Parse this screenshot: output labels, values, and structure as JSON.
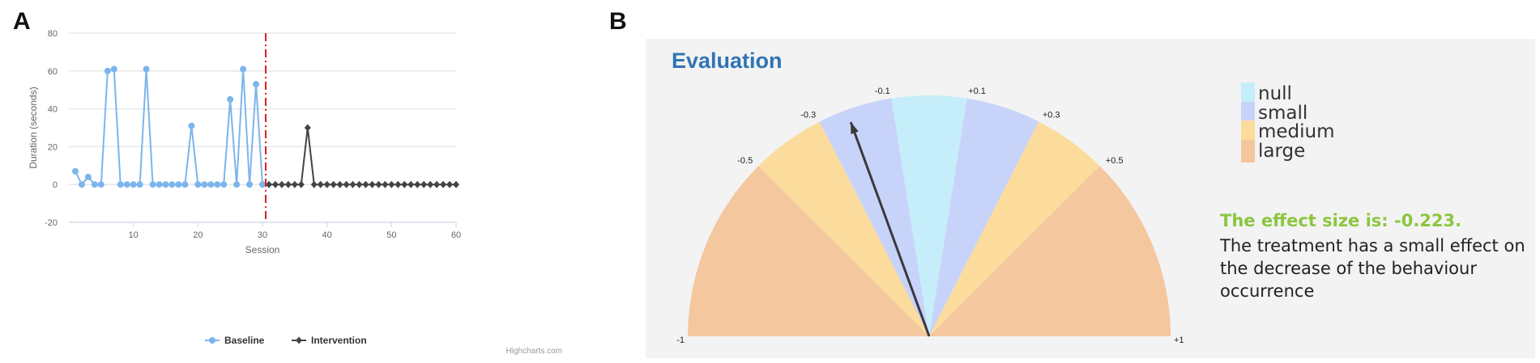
{
  "panels": {
    "a_letter": "A",
    "b_letter": "B"
  },
  "chart_data": [
    {
      "type": "line",
      "title": "",
      "xlabel": "Session",
      "ylabel": "Duration (seconds)",
      "xlim": [
        0,
        60
      ],
      "ylim": [
        -20,
        80
      ],
      "x_ticks": [
        10,
        20,
        30,
        40,
        50,
        60
      ],
      "y_ticks": [
        -20,
        0,
        20,
        40,
        60,
        80
      ],
      "grid": true,
      "legend_position": "bottom-center",
      "phase_change_at": 30.5,
      "credit": "Highcharts.com",
      "series": [
        {
          "name": "Baseline",
          "color": "#7cb5ec",
          "marker": "circle",
          "x": [
            1,
            2,
            3,
            4,
            5,
            6,
            7,
            8,
            9,
            10,
            11,
            12,
            13,
            14,
            15,
            16,
            17,
            18,
            19,
            20,
            21,
            22,
            23,
            24,
            25,
            26,
            27,
            28,
            29,
            30
          ],
          "y": [
            7,
            0,
            4,
            0,
            0,
            60,
            61,
            0,
            0,
            0,
            0,
            61,
            0,
            0,
            0,
            0,
            0,
            0,
            31,
            0,
            0,
            0,
            0,
            0,
            45,
            0,
            61,
            0,
            53,
            0
          ]
        },
        {
          "name": "Intervention",
          "color": "#434348",
          "marker": "diamond",
          "x": [
            31,
            32,
            33,
            34,
            35,
            36,
            37,
            38,
            39,
            40,
            41,
            42,
            43,
            44,
            45,
            46,
            47,
            48,
            49,
            50,
            51,
            52,
            53,
            54,
            55,
            56,
            57,
            58,
            59,
            60
          ],
          "y": [
            0,
            0,
            0,
            0,
            0,
            0,
            30,
            0,
            0,
            0,
            0,
            0,
            0,
            0,
            0,
            0,
            0,
            0,
            0,
            0,
            0,
            0,
            0,
            0,
            0,
            0,
            0,
            0,
            0,
            0
          ]
        }
      ]
    },
    {
      "type": "gauge",
      "title": "Evaluation",
      "range": [
        -1,
        1
      ],
      "ticks": [
        "-1",
        "-0.5",
        "-0.3",
        "-0.1",
        "+0.1",
        "+0.3",
        "+0.5",
        "+1"
      ],
      "tick_values": [
        -1,
        -0.5,
        -0.3,
        -0.1,
        0.1,
        0.3,
        0.5,
        1
      ],
      "bands": [
        {
          "from": -1,
          "to": -0.5,
          "category": "large"
        },
        {
          "from": -0.5,
          "to": -0.3,
          "category": "medium"
        },
        {
          "from": -0.3,
          "to": -0.1,
          "category": "small"
        },
        {
          "from": -0.1,
          "to": 0.1,
          "category": "null"
        },
        {
          "from": 0.1,
          "to": 0.3,
          "category": "small"
        },
        {
          "from": 0.3,
          "to": 0.5,
          "category": "medium"
        },
        {
          "from": 0.5,
          "to": 1,
          "category": "large"
        }
      ],
      "needle_value": -0.223,
      "legend": [
        {
          "label": "null",
          "color": "#c6eefa"
        },
        {
          "label": "small",
          "color": "#c8d3fa"
        },
        {
          "label": "medium",
          "color": "#fbdc9c"
        },
        {
          "label": "large",
          "color": "#f4c79f"
        }
      ],
      "effect_text": "The effect size is: -0.223.",
      "effect_description": "The treatment has a small effect on the decrease of the behaviour occurrence"
    }
  ]
}
